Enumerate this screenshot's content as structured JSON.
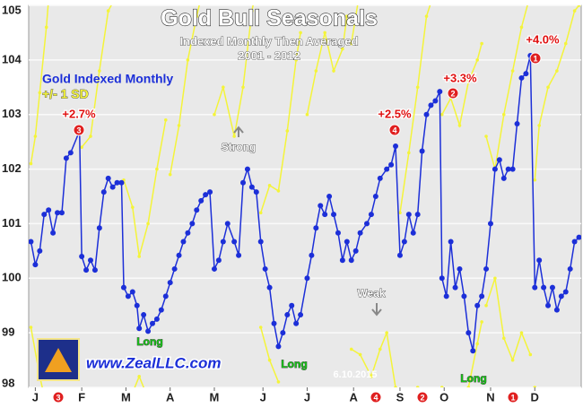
{
  "chart_data": {
    "type": "line",
    "title": "Gold Bull Seasonals",
    "subtitle": "Indexed Monthly Then Averaged",
    "period": "2001 - 2012",
    "xlim": [
      0,
      250
    ],
    "xticks": [
      {
        "value": 3,
        "label": "J"
      },
      {
        "value": 24,
        "label": "F"
      },
      {
        "value": 44,
        "label": "M"
      },
      {
        "value": 64,
        "label": "A"
      },
      {
        "value": 84,
        "label": "M"
      },
      {
        "value": 106,
        "label": "J"
      },
      {
        "value": 126,
        "label": "J"
      },
      {
        "value": 147,
        "label": "A"
      },
      {
        "value": 168,
        "label": "S"
      },
      {
        "value": 188,
        "label": "O"
      },
      {
        "value": 209,
        "label": "N"
      },
      {
        "value": 229,
        "label": "D"
      }
    ],
    "ylim": [
      98,
      105
    ],
    "yticks": [
      98,
      99,
      100,
      101,
      102,
      103,
      104,
      105
    ],
    "grid": true,
    "series": [
      {
        "name": "Gold Indexed Monthly",
        "color": "#1c2fd8",
        "x": [
          1,
          3,
          5,
          7,
          9,
          11,
          13,
          15,
          17,
          19,
          23,
          24,
          26,
          28,
          30,
          32,
          34,
          36,
          38,
          40,
          42,
          43,
          45,
          47,
          49,
          50,
          52,
          54,
          56,
          58,
          60,
          62,
          64,
          66,
          68,
          70,
          72,
          74,
          76,
          78,
          80,
          82,
          84,
          86,
          88,
          90,
          93,
          95,
          97,
          99,
          101,
          103,
          105,
          107,
          109,
          111,
          113,
          115,
          117,
          119,
          121,
          123,
          126,
          128,
          130,
          132,
          134,
          136,
          138,
          140,
          142,
          144,
          146,
          148,
          150,
          153,
          155,
          157,
          159,
          162,
          164,
          166,
          168,
          170,
          172,
          174,
          176,
          178,
          180,
          182,
          184,
          186,
          187,
          189,
          191,
          193,
          195,
          197,
          199,
          201,
          203,
          205,
          207,
          209,
          211,
          213,
          215,
          217,
          219,
          221,
          223,
          225,
          227,
          229,
          231,
          233,
          235,
          237,
          239,
          241,
          243,
          245,
          247,
          249
        ],
        "values": [
          100.67,
          100.25,
          100.5,
          101.17,
          101.25,
          100.83,
          101.2,
          101.2,
          102.2,
          102.3,
          102.7,
          100.4,
          100.15,
          100.33,
          100.15,
          100.92,
          101.58,
          101.83,
          101.67,
          101.75,
          101.75,
          99.83,
          99.67,
          99.75,
          99.5,
          99.08,
          99.33,
          99.03,
          99.17,
          99.25,
          99.42,
          99.67,
          99.92,
          100.17,
          100.42,
          100.67,
          100.83,
          101.0,
          101.25,
          101.42,
          101.53,
          101.58,
          100.17,
          100.33,
          100.67,
          101.0,
          100.67,
          100.42,
          101.75,
          102.0,
          101.67,
          101.58,
          100.67,
          100.17,
          99.83,
          99.17,
          98.75,
          99.0,
          99.33,
          99.5,
          99.17,
          99.33,
          100.0,
          100.42,
          100.92,
          101.33,
          101.17,
          101.5,
          101.17,
          100.83,
          100.33,
          100.67,
          100.33,
          100.5,
          100.83,
          101.0,
          101.17,
          101.5,
          101.83,
          102.0,
          102.08,
          102.42,
          100.42,
          100.67,
          101.17,
          100.83,
          101.17,
          102.33,
          103.0,
          103.17,
          103.25,
          103.42,
          100.0,
          99.67,
          100.67,
          99.83,
          100.17,
          99.67,
          99.0,
          98.67,
          99.5,
          99.67,
          100.17,
          101.0,
          102.0,
          102.17,
          101.83,
          102.0,
          102.0,
          102.83,
          103.67,
          103.75,
          104.08,
          99.83,
          100.33,
          99.83,
          99.5,
          99.83,
          99.42,
          99.67,
          99.75,
          100.17,
          100.67,
          100.75
        ]
      },
      {
        "name": "+/- 1 SD",
        "color": "#f4f43a",
        "x": [
          1,
          3,
          5,
          8,
          10,
          null,
          1,
          5,
          9,
          null,
          24,
          28,
          32,
          36,
          40,
          null,
          43,
          47,
          50,
          54,
          58,
          62,
          null,
          43,
          50,
          54,
          null,
          64,
          68,
          72,
          76,
          80,
          null,
          84,
          88,
          93,
          97,
          101,
          103,
          null,
          105,
          109,
          113,
          117,
          121,
          123,
          null,
          105,
          109,
          113,
          null,
          126,
          130,
          134,
          138,
          142,
          144,
          null,
          146,
          150,
          null,
          146,
          150,
          155,
          159,
          162,
          166,
          null,
          168,
          172,
          176,
          180,
          184,
          null,
          176,
          180,
          null,
          187,
          191,
          195,
          199,
          203,
          205,
          null,
          187,
          193,
          199,
          203,
          205,
          null,
          207,
          211,
          215,
          219,
          223,
          227,
          null,
          207,
          211,
          215,
          219,
          223,
          227,
          null,
          229,
          231,
          235,
          239,
          243,
          247,
          249,
          null,
          229,
          233
        ],
        "values": [
          102.1,
          102.6,
          103.4,
          104.6,
          105.6,
          null,
          99.1,
          98.2,
          97.5,
          null,
          102.4,
          102.6,
          103.8,
          104.9,
          105.2,
          null,
          101.8,
          101.3,
          100.4,
          101.0,
          102.0,
          102.9,
          null,
          97.5,
          98.2,
          97.8,
          null,
          101.9,
          102.8,
          104.0,
          104.8,
          105.5,
          null,
          103.0,
          103.5,
          102.6,
          103.5,
          104.9,
          105.3,
          null,
          101.2,
          101.7,
          101.6,
          102.7,
          104.0,
          104.5,
          null,
          99.1,
          98.5,
          98.1,
          null,
          103.0,
          103.8,
          104.5,
          103.8,
          104.2,
          104.8,
          null,
          104.3,
          105.3,
          null,
          98.7,
          98.6,
          98.2,
          98.7,
          99.0,
          98.0,
          null,
          101.2,
          102.3,
          103.5,
          104.8,
          105.3,
          null,
          98.0,
          97.8,
          null,
          103.0,
          103.3,
          102.8,
          103.6,
          104.0,
          104.3,
          null,
          98.0,
          97.8,
          98.0,
          98.8,
          99.2,
          null,
          102.6,
          102.0,
          103.0,
          103.8,
          104.6,
          105.2,
          null,
          99.5,
          100.0,
          98.9,
          98.5,
          99.0,
          98.6,
          null,
          101.8,
          102.8,
          103.5,
          103.8,
          104.3,
          104.9,
          105.0,
          null,
          98.0,
          97.6
        ]
      }
    ],
    "gain_labels": [
      "+2.7%",
      "+2.5%",
      "+3.3%",
      "+4.0%"
    ],
    "gain_ranks": [
      "3",
      "4",
      "2",
      "1"
    ],
    "month_ranks": [
      "3",
      "4",
      "2",
      "1"
    ],
    "notes": [
      "Strong",
      "Weak",
      "Long",
      "Long",
      "Long"
    ],
    "website": "www.ZealLLC.com",
    "date": "6.10.2015"
  }
}
